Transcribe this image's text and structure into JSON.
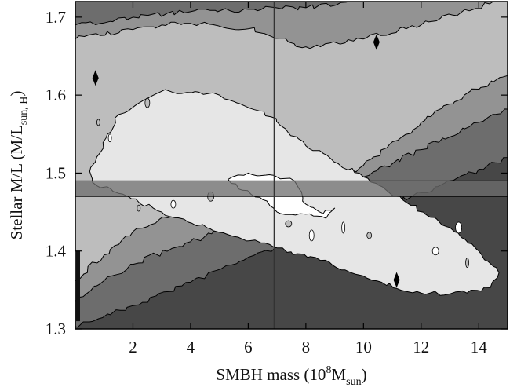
{
  "chart_data": {
    "type": "heatmap",
    "subtype": "filled-contour",
    "x_axis": {
      "label_parts": {
        "main": "SMBH mass (10",
        "sup": "8",
        "mid": "M",
        "sub": "sun",
        "end": ")"
      },
      "range": [
        0,
        15
      ],
      "ticks": [
        2,
        4,
        6,
        8,
        10,
        12,
        14
      ]
    },
    "y_axis": {
      "label_parts": {
        "main": "Stellar M/L (M/L",
        "sub": "sun, H",
        "end": ")"
      },
      "range": [
        1.3,
        1.72
      ],
      "ticks": [
        1.3,
        1.4,
        1.5,
        1.6,
        1.7
      ]
    },
    "grid": false,
    "best_fit_marker": {
      "x": 6.9,
      "y": 1.48
    },
    "shaded_band": {
      "y_low": 1.47,
      "y_high": 1.49
    },
    "colors": {
      "level_0": "#474747",
      "level_1": "#6d6d6d",
      "level_2": "#939393",
      "level_3": "#bdbdbd",
      "level_4": "#e6e6e6",
      "level_5": "#ffffff",
      "band": "#6e6e6e",
      "line": "#000000"
    },
    "contour_levels": [
      {
        "level": 1,
        "points": [
          [
            0,
            1.303
          ],
          [
            2,
            1.33
          ],
          [
            4,
            1.36
          ],
          [
            6,
            1.392
          ],
          [
            8,
            1.418
          ],
          [
            10,
            1.446
          ],
          [
            12,
            1.475
          ],
          [
            14,
            1.505
          ],
          [
            15,
            1.52
          ],
          [
            15,
            1.72
          ],
          [
            0,
            1.72
          ]
        ]
      },
      {
        "level": 2,
        "points": [
          [
            0,
            1.335
          ],
          [
            1,
            1.362
          ],
          [
            2,
            1.383
          ],
          [
            4,
            1.412
          ],
          [
            6,
            1.44
          ],
          [
            7,
            1.452
          ],
          [
            8,
            1.465
          ],
          [
            10,
            1.495
          ],
          [
            12,
            1.53
          ],
          [
            14,
            1.565
          ],
          [
            15,
            1.582
          ],
          [
            15,
            1.72
          ],
          [
            9.5,
            1.72
          ],
          [
            8,
            1.712
          ],
          [
            6,
            1.71
          ],
          [
            4,
            1.707
          ],
          [
            2,
            1.7
          ],
          [
            0,
            1.69
          ]
        ]
      },
      {
        "level": 3,
        "points": [
          [
            0,
            1.362
          ],
          [
            1,
            1.395
          ],
          [
            2,
            1.425
          ],
          [
            4,
            1.455
          ],
          [
            6,
            1.47
          ],
          [
            8,
            1.472
          ],
          [
            10,
            1.51
          ],
          [
            12,
            1.565
          ],
          [
            13.5,
            1.6
          ],
          [
            15,
            1.625
          ],
          [
            15,
            1.72
          ],
          [
            14.5,
            1.72
          ],
          [
            12,
            1.69
          ],
          [
            10,
            1.672
          ],
          [
            8,
            1.662
          ],
          [
            6,
            1.685
          ],
          [
            4,
            1.692
          ],
          [
            3,
            1.69
          ],
          [
            2,
            1.684
          ],
          [
            0,
            1.672
          ]
        ]
      },
      {
        "level": 4,
        "points": [
          [
            0.5,
            1.502
          ],
          [
            1.5,
            1.575
          ],
          [
            3,
            1.605
          ],
          [
            5,
            1.6
          ],
          [
            6.8,
            1.572
          ],
          [
            8,
            1.535
          ],
          [
            10,
            1.495
          ],
          [
            11.5,
            1.462
          ],
          [
            13,
            1.43
          ],
          [
            14,
            1.4
          ],
          [
            14.7,
            1.372
          ],
          [
            14.4,
            1.353
          ],
          [
            13,
            1.345
          ],
          [
            11.5,
            1.348
          ],
          [
            10,
            1.368
          ],
          [
            8.5,
            1.388
          ],
          [
            7,
            1.404
          ],
          [
            5,
            1.424
          ],
          [
            3,
            1.45
          ],
          [
            1.5,
            1.474
          ],
          [
            0.6,
            1.488
          ]
        ]
      },
      {
        "level": 5,
        "points": [
          [
            5.3,
            1.492
          ],
          [
            6,
            1.5
          ],
          [
            6.9,
            1.497
          ],
          [
            7.6,
            1.49
          ],
          [
            8,
            1.46
          ],
          [
            8.6,
            1.448
          ],
          [
            9,
            1.455
          ],
          [
            8.7,
            1.442
          ],
          [
            7.8,
            1.448
          ],
          [
            7,
            1.45
          ],
          [
            6.5,
            1.466
          ],
          [
            5.8,
            1.478
          ]
        ]
      }
    ],
    "peak_markers": [
      {
        "x": 0.7,
        "y": 1.622
      },
      {
        "x": 10.45,
        "y": 1.668
      },
      {
        "x": 11.15,
        "y": 1.363
      }
    ]
  }
}
